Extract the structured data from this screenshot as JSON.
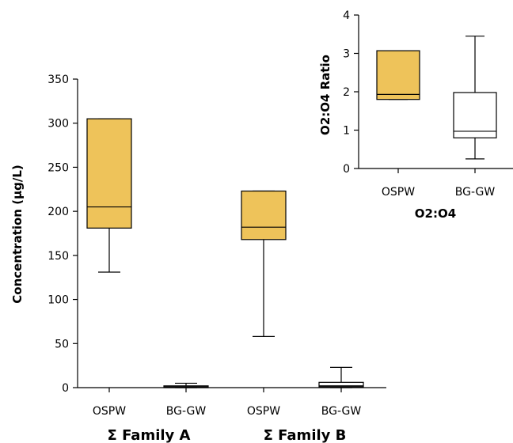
{
  "chart_data": [
    {
      "type": "box",
      "ylabel": "Concentration (µg/L)",
      "ylim": [
        0,
        350
      ],
      "yticks": [
        0,
        50,
        100,
        150,
        200,
        250,
        300,
        350
      ],
      "categories": [
        "OSPW",
        "BG-GW",
        "OSPW",
        "BG-GW"
      ],
      "groups": [
        "Σ Family A",
        "Σ Family B"
      ],
      "boxes": [
        {
          "label": "OSPW",
          "group": "Σ Family A",
          "min": 131,
          "q1": 181,
          "median": 205,
          "q3": 305,
          "max": 305,
          "color": "#EEC35A"
        },
        {
          "label": "BG-GW",
          "group": "Σ Family A",
          "min": 0,
          "q1": 0,
          "median": 1,
          "q3": 2,
          "max": 5,
          "color": "#ffffff"
        },
        {
          "label": "OSPW",
          "group": "Σ Family B",
          "min": 58,
          "q1": 168,
          "median": 182,
          "q3": 223,
          "max": 223,
          "color": "#EEC35A"
        },
        {
          "label": "BG-GW",
          "group": "Σ Family B",
          "min": 0,
          "q1": 1,
          "median": 2,
          "q3": 6,
          "max": 23,
          "color": "#ffffff"
        }
      ],
      "grid": false
    },
    {
      "type": "box",
      "ylabel": "O2:O4 Ratio",
      "xlabel": "O2:O4",
      "ylim": [
        0,
        4
      ],
      "yticks": [
        0,
        1,
        2,
        3,
        4
      ],
      "categories": [
        "OSPW",
        "BG-GW"
      ],
      "boxes": [
        {
          "label": "OSPW",
          "min": 1.8,
          "q1": 1.8,
          "median": 1.93,
          "q3": 3.07,
          "max": 3.07,
          "color": "#EEC35A"
        },
        {
          "label": "BG-GW",
          "min": 0.25,
          "q1": 0.8,
          "median": 0.97,
          "q3": 1.98,
          "max": 3.45,
          "color": "#ffffff"
        }
      ],
      "grid": false
    }
  ]
}
